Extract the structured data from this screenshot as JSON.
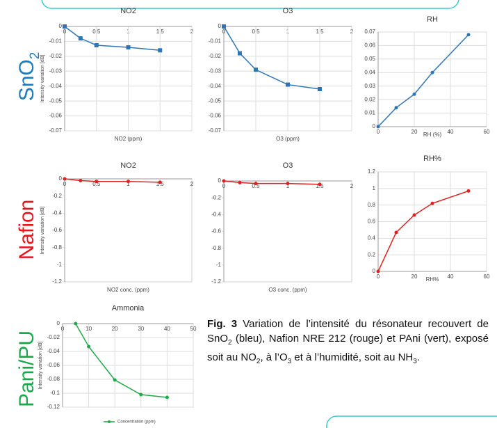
{
  "chart_data": [
    {
      "type": "line",
      "title": "NO2",
      "xlabel": "NO2 (ppm)",
      "ylabel": "Intensity variation [dB]",
      "xlim": [
        0,
        2
      ],
      "xticks": [
        0,
        0.5,
        1,
        1.5,
        2
      ],
      "ylim": [
        -0.07,
        0
      ],
      "yticks": [
        0,
        -0.01,
        -0.02,
        -0.03,
        -0.04,
        -0.05,
        -0.06,
        -0.07
      ],
      "grid": true,
      "marker": "square",
      "x": [
        0,
        0.25,
        0.5,
        1,
        1.5
      ],
      "series": [
        {
          "color": "#2e75b6",
          "values": [
            0,
            -0.008,
            -0.0126,
            -0.014,
            -0.016
          ]
        }
      ]
    },
    {
      "type": "line",
      "title": "O3",
      "xlabel": "O3 (ppm)",
      "xlim": [
        0,
        2
      ],
      "xticks": [
        0,
        0.5,
        1,
        1.5,
        2
      ],
      "ylim": [
        -0.07,
        0
      ],
      "yticks": [
        0,
        -0.01,
        -0.02,
        -0.03,
        -0.04,
        -0.05,
        -0.06,
        -0.07
      ],
      "grid": true,
      "marker": "square",
      "x": [
        0,
        0.25,
        0.5,
        1,
        1.5
      ],
      "series": [
        {
          "color": "#2e75b6",
          "values": [
            0,
            -0.018,
            -0.029,
            -0.039,
            -0.042
          ]
        }
      ]
    },
    {
      "type": "line",
      "title": "RH",
      "xlabel": "RH (%)",
      "xlim": [
        0,
        60
      ],
      "xticks": [
        0,
        20,
        40,
        60
      ],
      "ylim": [
        0,
        0.07
      ],
      "yticks": [
        0,
        0.01,
        0.02,
        0.03,
        0.04,
        0.05,
        0.06,
        0.07
      ],
      "grid": true,
      "marker": "circle",
      "x": [
        0,
        10,
        20,
        30,
        50
      ],
      "series": [
        {
          "color": "#2e75b6",
          "values": [
            0,
            0.014,
            0.024,
            0.04,
            0.068
          ]
        }
      ]
    },
    {
      "type": "line",
      "title": "NO2",
      "xlabel": "NO2 conc. (ppm)",
      "ylabel": "Intensity variation [dB]",
      "xlim": [
        0,
        2
      ],
      "xticks": [
        0,
        0.5,
        1,
        1.5,
        2
      ],
      "ylim": [
        -1.2,
        0
      ],
      "yticks": [
        0,
        -0.2,
        -0.4,
        -0.6,
        -0.8,
        -1,
        -1.2
      ],
      "grid": false,
      "marker": "circle",
      "x": [
        0,
        0.25,
        0.5,
        1,
        1.5
      ],
      "series": [
        {
          "color": "#e02020",
          "values": [
            0,
            -0.02,
            -0.03,
            -0.03,
            -0.04
          ]
        }
      ]
    },
    {
      "type": "line",
      "title": "O3",
      "xlabel": "O3 conc. (ppm)",
      "xlim": [
        0,
        2
      ],
      "xticks": [
        0,
        0.5,
        1,
        1.5,
        2
      ],
      "ylim": [
        -1.2,
        0
      ],
      "yticks": [
        0,
        -0.2,
        -0.4,
        -0.6,
        -0.8,
        -1,
        -1.2
      ],
      "grid": false,
      "marker": "circle",
      "x": [
        0,
        0.25,
        0.5,
        1,
        1.5
      ],
      "series": [
        {
          "color": "#e02020",
          "values": [
            0,
            -0.02,
            -0.03,
            -0.03,
            -0.04
          ]
        }
      ]
    },
    {
      "type": "line",
      "title": "RH%",
      "xlabel": "RH%",
      "xlim": [
        0,
        60
      ],
      "xticks": [
        0,
        20,
        40,
        60
      ],
      "ylim": [
        0,
        1.2
      ],
      "yticks": [
        0,
        0.2,
        0.4,
        0.6,
        0.8,
        1,
        1.2
      ],
      "grid": true,
      "marker": "circle",
      "x": [
        0,
        10,
        20,
        30,
        50
      ],
      "series": [
        {
          "color": "#e02020",
          "values": [
            0,
            0.47,
            0.68,
            0.82,
            0.97
          ]
        }
      ]
    },
    {
      "type": "line",
      "title": "Ammonia",
      "ylabel": "Intensity variation [dB]",
      "xlim": [
        0,
        50
      ],
      "xticks": [
        0,
        10,
        20,
        30,
        40,
        50
      ],
      "ylim": [
        -0.12,
        0
      ],
      "yticks": [
        0,
        -0.02,
        -0.04,
        -0.06,
        -0.08,
        -0.1,
        -0.12
      ],
      "grid": true,
      "marker": "circle",
      "x": [
        5,
        10,
        20,
        30,
        40
      ],
      "series": [
        {
          "name": "Concentration (ppm)",
          "color": "#21a84a",
          "values": [
            0,
            -0.033,
            -0.081,
            -0.102,
            -0.106
          ]
        }
      ]
    }
  ],
  "row_labels": [
    [
      "SnO",
      "2"
    ],
    [
      "Nafion"
    ],
    [
      "Pani/PU"
    ]
  ],
  "caption": {
    "label": "Fig. 3",
    "parts": [
      " Variation de l’intensité du résonateur recouvert de SnO",
      "2",
      " (bleu), Nafion NRE 212 (rouge) et PAni (vert), exposé soit au NO",
      "2",
      ", à l’O",
      "3",
      " et à l’humidité, soit au NH",
      "3",
      "."
    ]
  }
}
